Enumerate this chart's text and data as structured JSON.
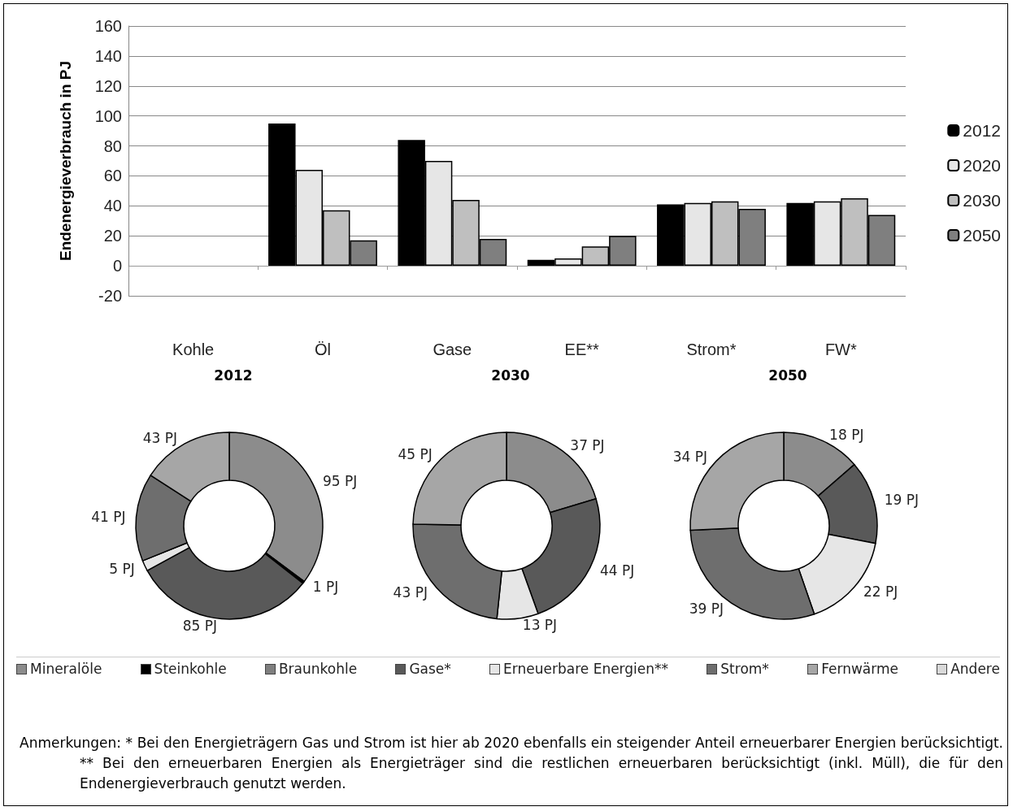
{
  "chart_data": [
    {
      "type": "bar",
      "ylabel": "Endenergieverbrauch in PJ",
      "categories": [
        "Kohle",
        "Öl",
        "Gase",
        "EE**",
        "Strom*",
        "FW*"
      ],
      "series": [
        {
          "name": "2012",
          "color": "#000000",
          "values": [
            null,
            95,
            84,
            4,
            41,
            42
          ]
        },
        {
          "name": "2020",
          "color": "#e6e6e6",
          "values": [
            null,
            64,
            70,
            5,
            42,
            43
          ]
        },
        {
          "name": "2030",
          "color": "#bfbfbf",
          "values": [
            null,
            37,
            44,
            13,
            43,
            45
          ]
        },
        {
          "name": "2050",
          "color": "#7f7f7f",
          "values": [
            null,
            17,
            18,
            20,
            38,
            34
          ]
        }
      ],
      "ylim": [
        -20,
        160
      ],
      "yticks": [
        -20,
        0,
        20,
        40,
        60,
        80,
        100,
        120,
        140,
        160
      ],
      "grid": "y",
      "legend": "right"
    },
    {
      "type": "donut",
      "categories": [
        "Mineralöle",
        "Steinkohle",
        "Braunkohle",
        "Gase*",
        "Erneuerbare Energien**",
        "Strom*",
        "Fernwärme",
        "Andere"
      ],
      "colors": [
        "#8c8c8c",
        "#000000",
        "#7f7f7f",
        "#595959",
        "#e6e6e6",
        "#6e6e6e",
        "#a6a6a6",
        "#d9d9d9"
      ],
      "series": [
        {
          "name": "2012",
          "values": [
            95,
            1,
            null,
            85,
            5,
            41,
            43,
            null
          ],
          "value_labels": [
            "95 PJ",
            "1 PJ",
            null,
            "85 PJ",
            "5 PJ",
            "41 PJ",
            "43 PJ",
            null
          ]
        },
        {
          "name": "2030",
          "values": [
            37,
            null,
            null,
            44,
            13,
            43,
            45,
            null
          ],
          "value_labels": [
            "37 PJ",
            null,
            null,
            "44 PJ",
            "13 PJ",
            "43 PJ",
            "45 PJ",
            null
          ]
        },
        {
          "name": "2050",
          "values": [
            18,
            null,
            null,
            19,
            22,
            39,
            34,
            null
          ],
          "value_labels": [
            "18 PJ",
            null,
            null,
            "19 PJ",
            "22 PJ",
            "39 PJ",
            "34 PJ",
            null
          ]
        }
      ],
      "legend": "bottom",
      "annotations": [
        "Anmerkungen: * Bei den Energieträgern Gas und Strom ist hier ab 2020 ebenfalls ein steigender Anteil erneuerbarer Energien berücksichtigt. ** Bei den erneuerbaren Energien als Energieträger sind die restlichen erneuerbaren berücksichtigt (inkl. Müll), die für den Endenergieverbrauch genutzt werden."
      ]
    }
  ]
}
